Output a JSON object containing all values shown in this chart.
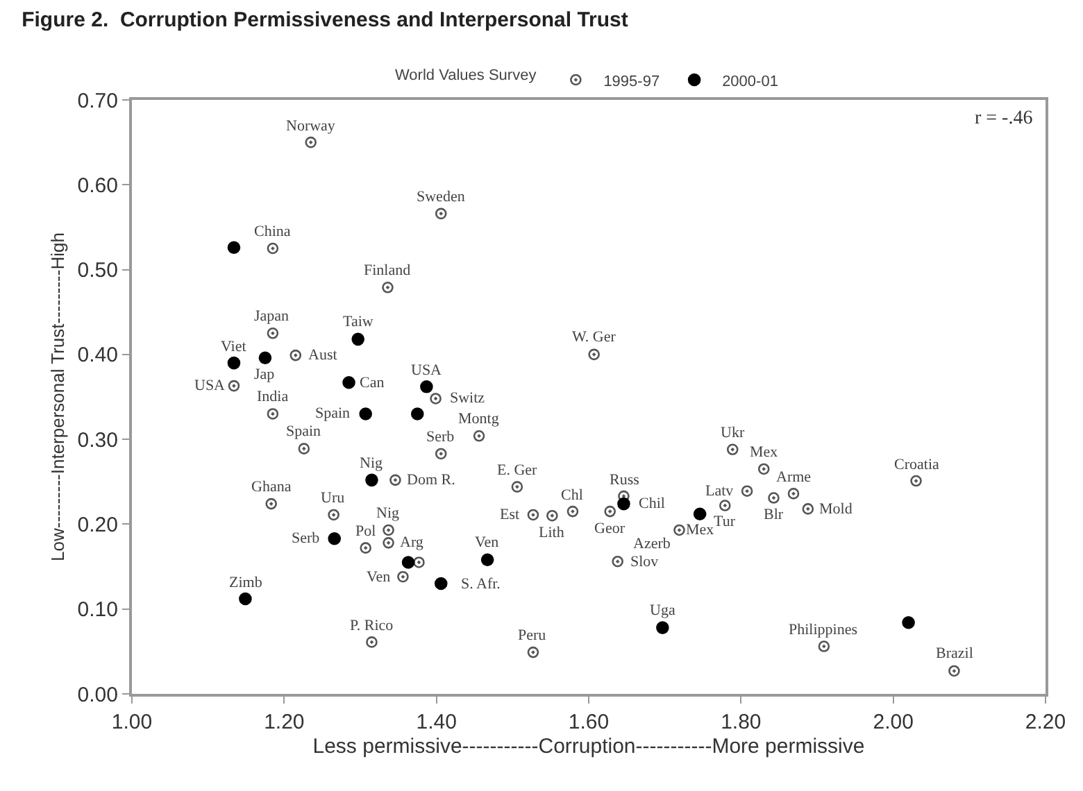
{
  "chart_data": {
    "type": "scatter",
    "title": "Figure 2.  Corruption Permissiveness and Interpersonal Trust",
    "xlabel": "Less permissive-----------Corruption-----------More permissive",
    "ylabel": "Low---------Interpersonal Trust---------High",
    "legend_title": "World Values Survey",
    "legend": "top",
    "marker": "circle",
    "xlim": [
      1.0,
      2.2
    ],
    "xticks": [
      {
        "value": 1.0,
        "label": "1.00"
      },
      {
        "value": 1.2,
        "label": "1.20"
      },
      {
        "value": 1.4,
        "label": "1.40"
      },
      {
        "value": 1.6,
        "label": "1.60"
      },
      {
        "value": 1.8,
        "label": "1.80"
      },
      {
        "value": 2.0,
        "label": "2.00"
      },
      {
        "value": 2.2,
        "label": "2.20"
      }
    ],
    "ylim": [
      0.0,
      0.7
    ],
    "yticks": [
      {
        "value": 0.0,
        "label": "0.00"
      },
      {
        "value": 0.1,
        "label": "0.10"
      },
      {
        "value": 0.2,
        "label": "0.20"
      },
      {
        "value": 0.3,
        "label": "0.30"
      },
      {
        "value": 0.4,
        "label": "0.40"
      },
      {
        "value": 0.5,
        "label": "0.50"
      },
      {
        "value": 0.6,
        "label": "0.60"
      },
      {
        "value": 0.7,
        "label": "0.70"
      }
    ],
    "series": [
      {
        "name": "1995-97",
        "color": "#555555",
        "x": [
          1.235,
          1.406,
          1.185,
          1.336,
          1.185,
          1.215,
          1.134,
          1.399,
          1.185,
          1.456,
          1.226,
          1.406,
          1.346,
          1.506,
          1.183,
          1.265,
          1.527,
          1.552,
          1.579,
          1.337,
          1.337,
          1.307,
          1.377,
          1.356,
          1.315,
          1.527,
          1.607,
          1.789,
          1.83,
          2.03,
          1.808,
          1.843,
          1.869,
          1.888,
          1.779,
          1.646,
          1.628,
          1.719,
          1.638,
          1.909,
          2.08
        ],
        "values": [
          0.65,
          0.566,
          0.525,
          0.479,
          0.425,
          0.399,
          0.363,
          0.348,
          0.33,
          0.304,
          0.289,
          0.283,
          0.252,
          0.244,
          0.224,
          0.211,
          0.211,
          0.21,
          0.215,
          0.193,
          0.178,
          0.172,
          0.155,
          0.138,
          0.061,
          0.049,
          0.4,
          0.288,
          0.265,
          0.251,
          0.239,
          0.231,
          0.236,
          0.218,
          0.222,
          0.233,
          0.215,
          0.193,
          0.156,
          0.056,
          0.027
        ]
      },
      {
        "name": "2000-01",
        "color": "#000000",
        "x": [
          1.134,
          1.297,
          1.134,
          1.175,
          1.387,
          1.285,
          1.307,
          1.375,
          1.315,
          1.266,
          1.363,
          1.467,
          1.406,
          1.149,
          1.646,
          1.746,
          1.697,
          2.02
        ],
        "values": [
          0.526,
          0.418,
          0.39,
          0.396,
          0.362,
          0.367,
          0.33,
          0.33,
          0.252,
          0.183,
          0.155,
          0.158,
          0.13,
          0.112,
          0.224,
          0.212,
          0.078,
          0.084
        ]
      }
    ],
    "annotations": [
      {
        "text": "Norway",
        "x": 1.235,
        "y": 0.65
      },
      {
        "text": "Sweden",
        "x": 1.406,
        "y": 0.566
      },
      {
        "text": "China",
        "x": 1.185,
        "y": 0.525
      },
      {
        "text": "Finland",
        "x": 1.336,
        "y": 0.479
      },
      {
        "text": "Japan",
        "x": 1.185,
        "y": 0.425
      },
      {
        "text": "Taiw",
        "x": 1.297,
        "y": 0.418
      },
      {
        "text": "W. Ger",
        "x": 1.607,
        "y": 0.4
      },
      {
        "text": "Viet",
        "x": 1.134,
        "y": 0.39
      },
      {
        "text": "Aust",
        "x": 1.215,
        "y": 0.399
      },
      {
        "text": "USA",
        "x": 1.387,
        "y": 0.362
      },
      {
        "text": "Jap",
        "x": 1.175,
        "y": 0.396
      },
      {
        "text": "USA",
        "x": 1.134,
        "y": 0.363
      },
      {
        "text": "Switz",
        "x": 1.399,
        "y": 0.348
      },
      {
        "text": "Can",
        "x": 1.285,
        "y": 0.367
      },
      {
        "text": "India",
        "x": 1.185,
        "y": 0.33
      },
      {
        "text": "Spain",
        "x": 1.307,
        "y": 0.33
      },
      {
        "text": "Montg",
        "x": 1.456,
        "y": 0.304
      },
      {
        "text": "Ukr",
        "x": 1.789,
        "y": 0.288
      },
      {
        "text": "Spain",
        "x": 1.226,
        "y": 0.289
      },
      {
        "text": "Nig",
        "x": 1.315,
        "y": 0.252
      },
      {
        "text": "Serb",
        "x": 1.406,
        "y": 0.283
      },
      {
        "text": "Mex",
        "x": 1.83,
        "y": 0.265
      },
      {
        "text": "Croatia",
        "x": 2.03,
        "y": 0.251
      },
      {
        "text": "E. Ger",
        "x": 1.506,
        "y": 0.244
      },
      {
        "text": "Latv",
        "x": 1.808,
        "y": 0.239
      },
      {
        "text": "Dom R.",
        "x": 1.346,
        "y": 0.252
      },
      {
        "text": "Russ",
        "x": 1.646,
        "y": 0.233
      },
      {
        "text": "Ghana",
        "x": 1.183,
        "y": 0.224
      },
      {
        "text": "Lith",
        "x": 1.552,
        "y": 0.21
      },
      {
        "text": "Arme",
        "x": 1.869,
        "y": 0.236
      },
      {
        "text": "Tur",
        "x": 1.779,
        "y": 0.222
      },
      {
        "text": "Uru",
        "x": 1.265,
        "y": 0.211
      },
      {
        "text": "Chil",
        "x": 1.646,
        "y": 0.224
      },
      {
        "text": "Blr",
        "x": 1.843,
        "y": 0.231
      },
      {
        "text": "Mold",
        "x": 1.888,
        "y": 0.218
      },
      {
        "text": "Nig",
        "x": 1.337,
        "y": 0.193
      },
      {
        "text": "Est",
        "x": 1.527,
        "y": 0.211
      },
      {
        "text": "Mex",
        "x": 1.746,
        "y": 0.212
      },
      {
        "text": "Geor",
        "x": 1.628,
        "y": 0.215
      },
      {
        "text": "Chl",
        "x": 1.579,
        "y": 0.215
      },
      {
        "text": "Serb",
        "x": 1.266,
        "y": 0.183
      },
      {
        "text": "Arg",
        "x": 1.337,
        "y": 0.178
      },
      {
        "text": "Azerb",
        "x": 1.719,
        "y": 0.193
      },
      {
        "text": "Pol",
        "x": 1.307,
        "y": 0.172
      },
      {
        "text": "Slov",
        "x": 1.638,
        "y": 0.156
      },
      {
        "text": "Ven",
        "x": 1.467,
        "y": 0.158
      },
      {
        "text": "Ven",
        "x": 1.356,
        "y": 0.138
      },
      {
        "text": "S. Afr.",
        "x": 1.406,
        "y": 0.13
      },
      {
        "text": "Uga",
        "x": 1.697,
        "y": 0.078
      },
      {
        "text": "Zimb",
        "x": 1.149,
        "y": 0.112
      },
      {
        "text": "Peru",
        "x": 1.527,
        "y": 0.049
      },
      {
        "text": "Philippines",
        "x": 1.909,
        "y": 0.056
      },
      {
        "text": "Brazil",
        "x": 2.08,
        "y": 0.027
      },
      {
        "text": "P. Rico",
        "x": 1.315,
        "y": 0.061
      },
      "r = -.46"
    ]
  }
}
